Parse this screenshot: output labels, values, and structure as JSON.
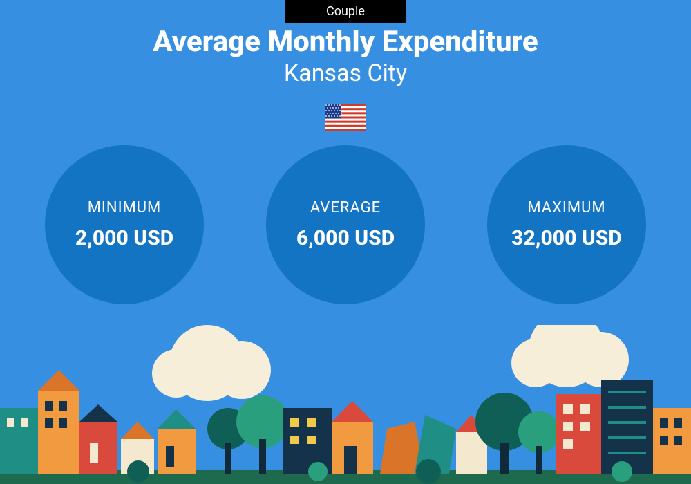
{
  "background_color": "#368fe1",
  "badge": {
    "text": "Couple",
    "bg": "#000000",
    "color": "#ffffff"
  },
  "title": {
    "text": "Average Monthly Expenditure",
    "color": "#ffffff",
    "fontsize": 42,
    "weight": 800
  },
  "subtitle": {
    "text": "Kansas City",
    "color": "#ffffff",
    "fontsize": 34,
    "weight": 400
  },
  "flag": {
    "field_color": "#1e3a8a",
    "stripe_red": "#d03a2b",
    "stripe_white": "#ffffff",
    "star_color": "#ffffff"
  },
  "circles": {
    "fill": "#1474c4",
    "radius": 115,
    "gap": 90,
    "label_fontsize": 22,
    "value_fontsize": 30,
    "items": [
      {
        "label": "MINIMUM",
        "value": "2,000 USD"
      },
      {
        "label": "AVERAGE",
        "value": "6,000 USD"
      },
      {
        "label": "MAXIMUM",
        "value": "32,000 USD"
      }
    ]
  },
  "city_palette": {
    "cloud": "#f6eed9",
    "tree_dark": "#0f5f56",
    "tree_med": "#2a9f7e",
    "trunk": "#102a3a",
    "orange": "#f29a3f",
    "orange_dark": "#d97428",
    "red": "#d94a3d",
    "teal": "#1f8f86",
    "navy": "#14324a",
    "cream": "#f4e9cf",
    "yellow": "#f3c94b",
    "ground": "#1e6a4e"
  }
}
